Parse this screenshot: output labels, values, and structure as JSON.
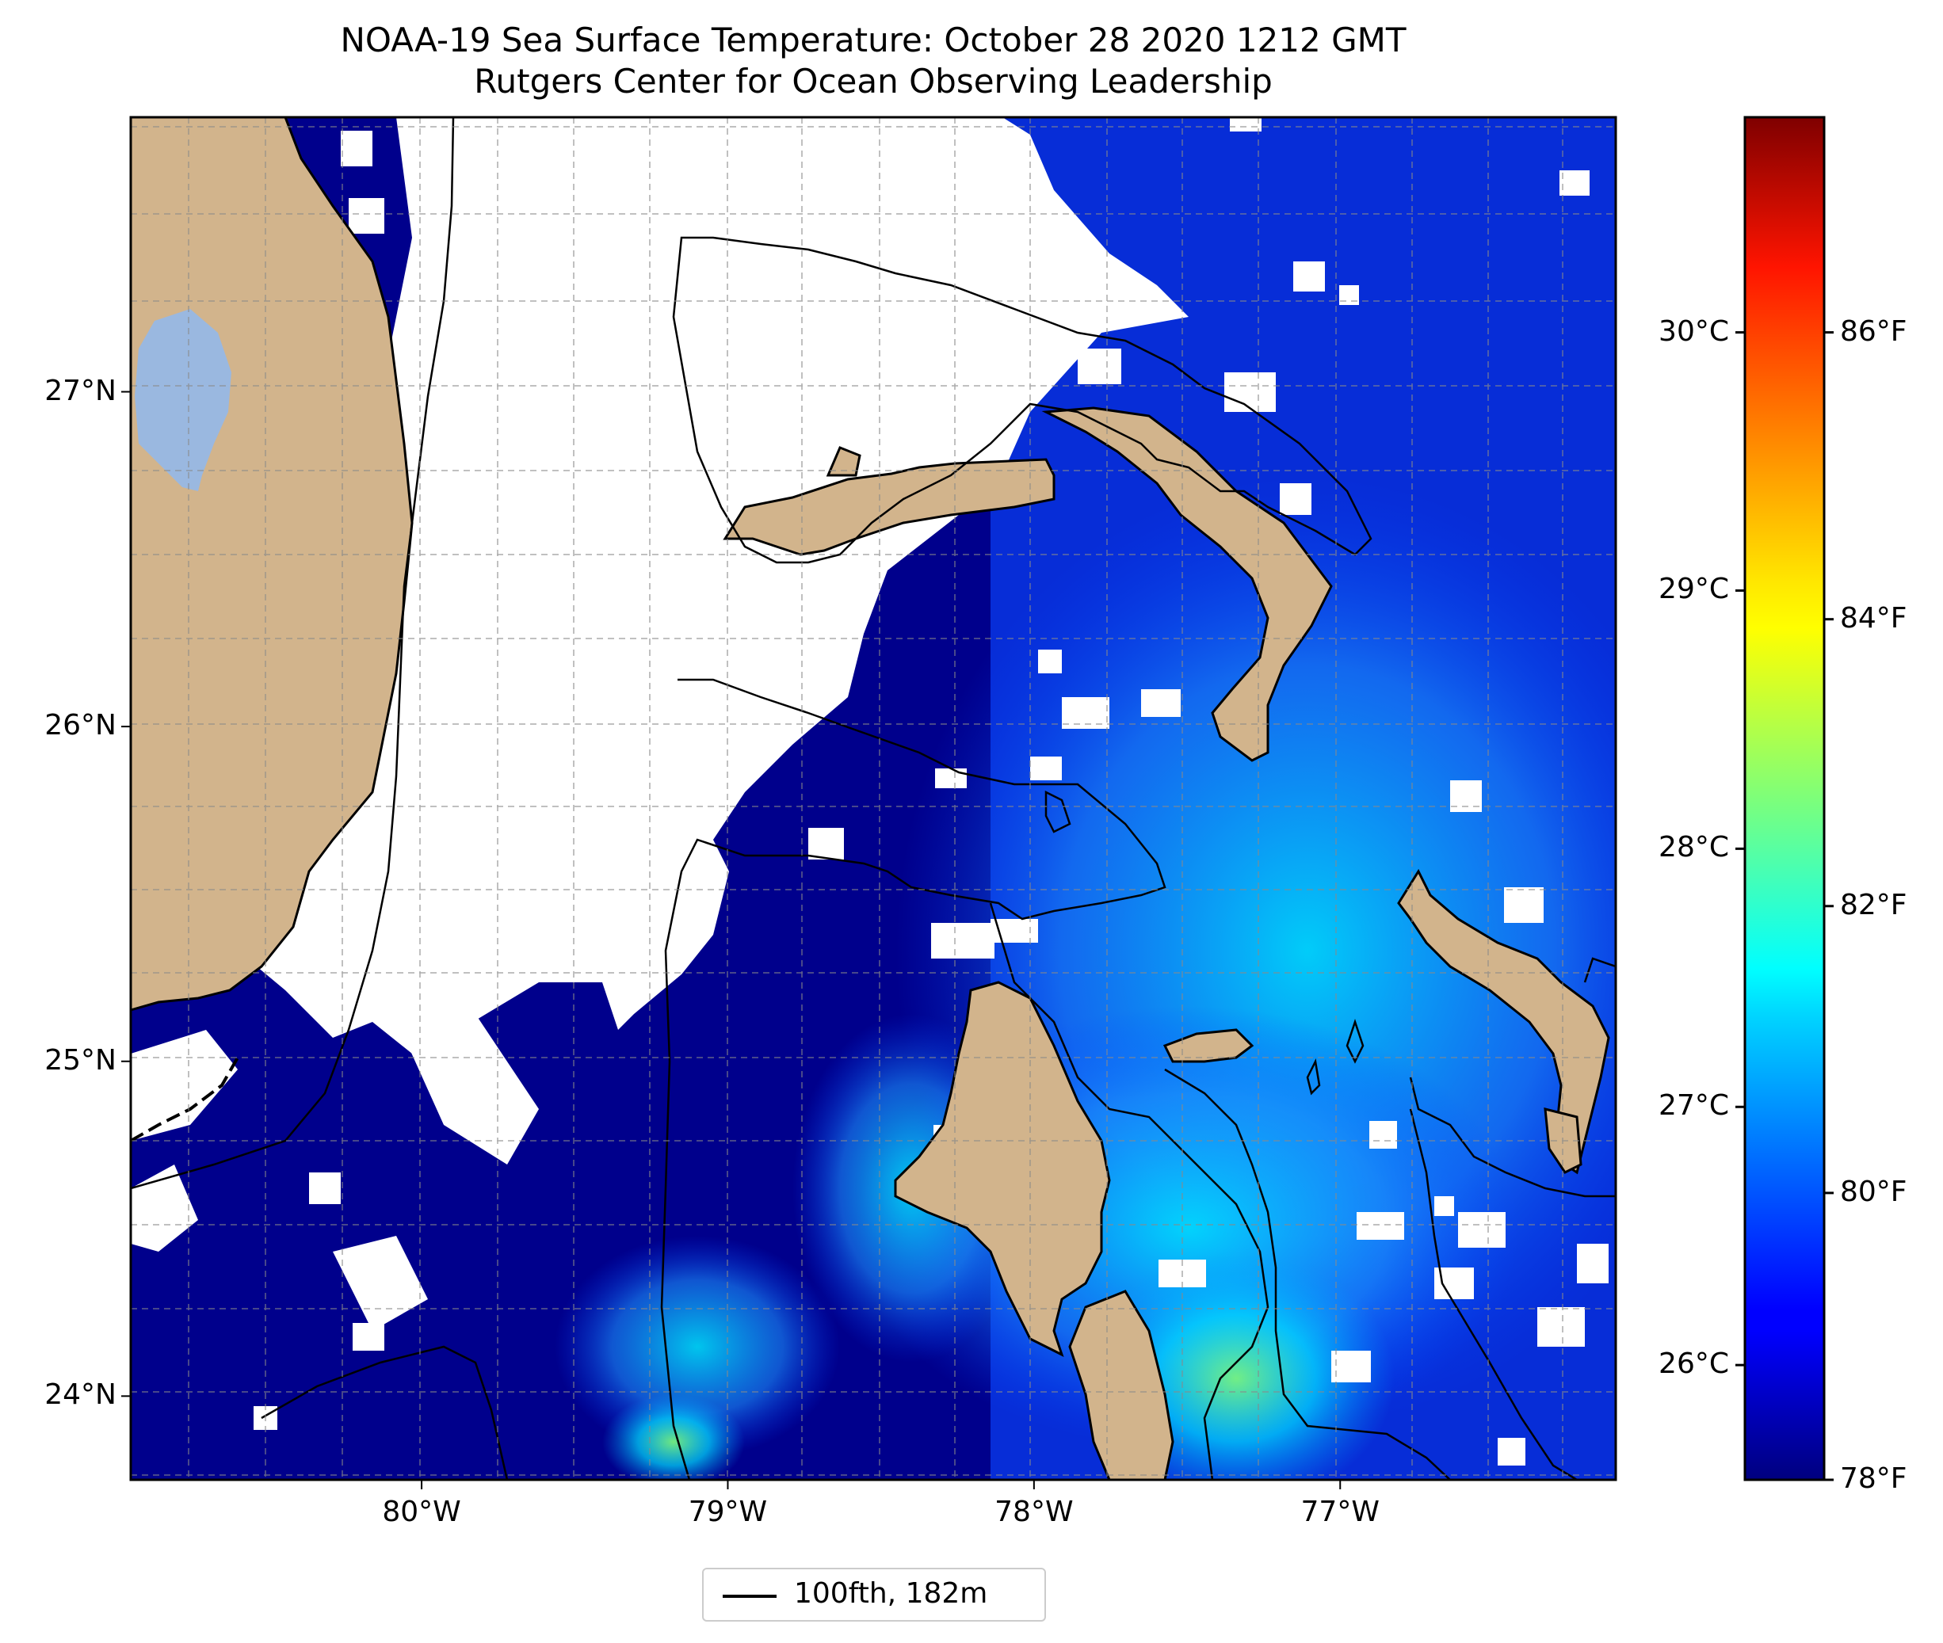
{
  "title": "NOAA-19 Sea Surface Temperature: October 28 2020 1212 GMT",
  "subtitle": "Rutgers Center for Ocean Observing Leadership",
  "map": {
    "lon_range": [
      -80.95,
      -76.1
    ],
    "lat_range": [
      23.75,
      27.82
    ],
    "lat_ticks": [
      {
        "value": 24,
        "label": "24°N"
      },
      {
        "value": 25,
        "label": "25°N"
      },
      {
        "value": 26,
        "label": "26°N"
      },
      {
        "value": 27,
        "label": "27°N"
      }
    ],
    "lon_ticks": [
      {
        "value": -80,
        "label": "80°W"
      },
      {
        "value": -79,
        "label": "79°W"
      },
      {
        "value": -78,
        "label": "78°W"
      },
      {
        "value": -77,
        "label": "77°W"
      }
    ],
    "gridlines": true,
    "land_color": "#d2b48c",
    "lake_color": "#9ab8e0",
    "cloud_mask_color": "#ffffff"
  },
  "colorbar": {
    "colormap": "jet",
    "celsius_labels": [
      {
        "value": 26,
        "label": "26°C"
      },
      {
        "value": 27,
        "label": "27°C"
      },
      {
        "value": 28,
        "label": "28°C"
      },
      {
        "value": 29,
        "label": "29°C"
      },
      {
        "value": 30,
        "label": "30°C"
      }
    ],
    "fahrenheit_labels": [
      {
        "value": 78,
        "label": "78°F"
      },
      {
        "value": 80,
        "label": "80°F"
      },
      {
        "value": 82,
        "label": "82°F"
      },
      {
        "value": 84,
        "label": "84°F"
      },
      {
        "value": 86,
        "label": "86°F"
      }
    ],
    "range_f": [
      78,
      87.5
    ]
  },
  "legend": {
    "label": "100fth, 182m",
    "color": "#000000"
  }
}
